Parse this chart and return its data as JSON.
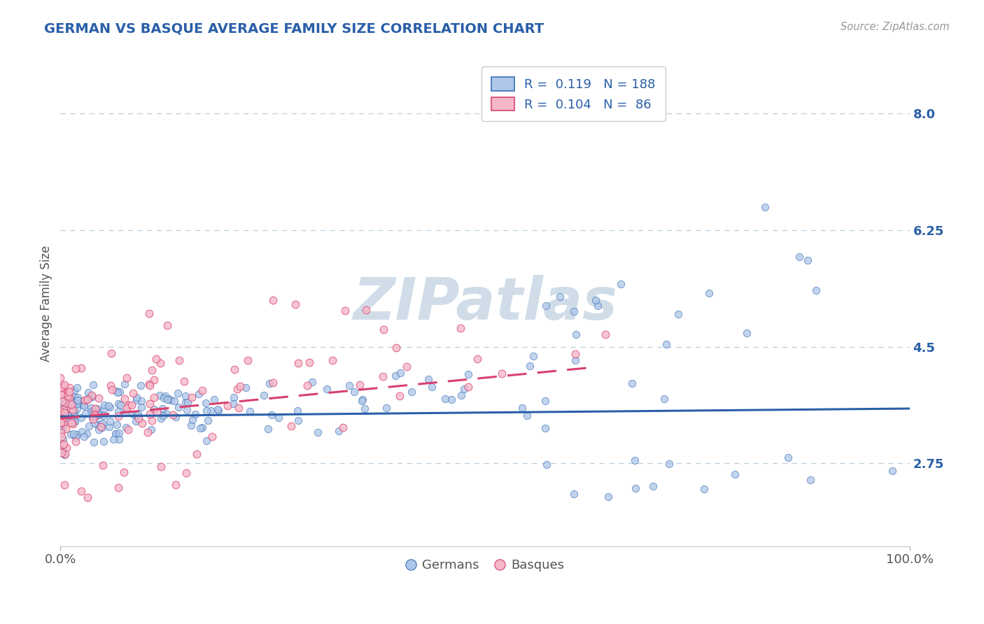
{
  "title": "GERMAN VS BASQUE AVERAGE FAMILY SIZE CORRELATION CHART",
  "source_text": "Source: ZipAtlas.com",
  "xlabel": "",
  "ylabel": "Average Family Size",
  "xlim": [
    0.0,
    1.0
  ],
  "ylim": [
    1.5,
    8.8
  ],
  "yticks": [
    2.75,
    4.5,
    6.25,
    8.0
  ],
  "xtick_labels": [
    "0.0%",
    "100.0%"
  ],
  "german_R": 0.119,
  "german_N": 188,
  "basque_R": 0.104,
  "basque_N": 86,
  "german_color": "#aec6e8",
  "german_edge_color": "#3a6fb5",
  "basque_color": "#f5b8c8",
  "basque_edge_color": "#d84070",
  "german_line_color": "#2a5fa8",
  "basque_line_color": "#d84070",
  "background_color": "#ffffff",
  "grid_color": "#b8cfe0",
  "title_color": "#2a5fa8",
  "ylabel_color": "#555555",
  "ytick_color": "#2a5fa8",
  "watermark_color": "#d0dde8",
  "legend_label_german": "Germans",
  "legend_label_basque": "Basques"
}
